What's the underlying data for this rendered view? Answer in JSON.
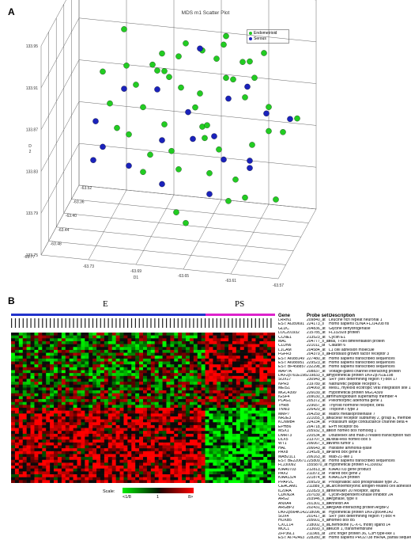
{
  "panel_a": {
    "label": "A",
    "title": "MDS m1 Scatter Plot",
    "legend": [
      {
        "name": "Endometrioid",
        "color": "#22cc22"
      },
      {
        "name": "Serous",
        "color": "#1a22bb"
      }
    ],
    "z_ticks": [
      "133.95",
      "133.91",
      "133.87",
      "133.83",
      "133.79",
      "133.75"
    ],
    "z_label": "D 2",
    "depth_ticks": [
      "-63.52",
      "-63.36",
      "-63.40",
      "-63.44",
      "-63.48"
    ],
    "bottom_left_tick": "-63.77",
    "x_ticks": [
      "-63.73",
      "-63.69",
      "-63.65",
      "-63.61",
      "-63.57"
    ],
    "x_label": "D1"
  },
  "panel_b": {
    "label": "B",
    "group_e": "E",
    "group_ps": "PS",
    "group_e_color": "#2233cc",
    "group_ps_color": "#dd22cc",
    "table_headers": {
      "gene": "Gene",
      "probe": "Probe set",
      "desc": "Description"
    },
    "genes": [
      {
        "gene": "LRRN1",
        "probe": "209840_at",
        "desc": "Leucine rich repeat neuronal 1"
      },
      {
        "gene": "EST: AI289691",
        "probe": "224173_s",
        "desc": "Homo sapiens cDNA FLJ14208 fis"
      },
      {
        "gene": "GLDC",
        "probe": "204836_at",
        "desc": "Glycine dehydrogenase"
      },
      {
        "gene": "LOC201932",
        "probe": "215785_at",
        "desc": "FLJ32928 protein"
      },
      {
        "gene": "CCNE1",
        "probe": "213523_at",
        "desc": "Cyclin E1"
      },
      {
        "gene": "MAL",
        "probe": "204777_s_at",
        "desc": "Mal, T-cell differentiation protein"
      },
      {
        "gene": "CLDN6",
        "probe": "221011_at",
        "desc": "Claudin 6"
      },
      {
        "gene": "L1CAM",
        "probe": "204584_at",
        "desc": "L1 cell adhesion molecule"
      },
      {
        "gene": "FGFR3",
        "probe": "204379_s_at",
        "desc": "Fibroblast growth factor receptor 3"
      },
      {
        "gene": "EST: AI088149",
        "probe": "227480_at",
        "desc": "Homo sapiens transcribed sequences"
      },
      {
        "gene": "EST: AI088951",
        "probe": "229523_at",
        "desc": "Homo sapiens transcribed sequences"
      },
      {
        "gene": "EST: BF458857",
        "probe": "232298_at",
        "desc": "Homo sapiens transcribed sequences"
      },
      {
        "gene": "MAP7A",
        "probe": "208837_at",
        "desc": "Voltage-gated channel interacting protein"
      },
      {
        "gene": "DKFZp761E198",
        "probe": "219833_s_at",
        "desc": "Hypothetical protein DKFZp761E198"
      },
      {
        "gene": "SOX17",
        "probe": "230943_at",
        "desc": "SRY (sex determining region Y)-box 17"
      },
      {
        "gene": "NPR3",
        "probe": "219789_at",
        "desc": "Natriuretic peptide receptor C"
      },
      {
        "gene": "MEIS1",
        "probe": "204069_at",
        "desc": "Meis1, myeloid ecotropic viral integration site 1"
      },
      {
        "gene": "MGC4399",
        "probe": "226039_at",
        "desc": "Hypothetical protein MGC4399"
      },
      {
        "gene": "IGSF4",
        "probe": "209030_s_at",
        "desc": "Immunoglobulin superfamily member 4"
      },
      {
        "gene": "PLAG1",
        "probe": "205372_at",
        "desc": "Pleiomorphic adenoma gene 1"
      },
      {
        "gene": "THRB",
        "probe": "229657_at",
        "desc": "Thyroid hormone receptor, beta"
      },
      {
        "gene": "TNNI3",
        "probe": "226420_at",
        "desc": "Troponin I type 3"
      },
      {
        "gene": "MMP7",
        "probe": "204259_at",
        "desc": "Matrix metalloproteinase 7"
      },
      {
        "gene": "NR2E3",
        "probe": "221055_s_at",
        "desc": "Nuclear receptor subfamily 2, group E, member 3"
      },
      {
        "gene": "KCNMB4",
        "probe": "224234_at",
        "desc": "Potassium large conductance channel beta 4"
      },
      {
        "gene": "EPHB6",
        "probe": "204718_at",
        "desc": "EPH receptor B6"
      },
      {
        "gene": "MSX1",
        "probe": "205932_s_at",
        "desc": "Msh homeo box homolog 1"
      },
      {
        "gene": "DMRT3",
        "probe": "220534_at",
        "desc": "Doublesex and mab-3 related transcription factor 3"
      },
      {
        "gene": "DLX5",
        "probe": "213707_s_at",
        "desc": "Distal-less homeo box 5"
      },
      {
        "gene": "WT1",
        "probe": "206067_s_at",
        "desc": "Wilms tumor 1"
      },
      {
        "gene": "HAL",
        "probe": "206643_at",
        "desc": "Histidine ammonia-lyase"
      },
      {
        "gene": "PAX8",
        "probe": "214528_s_at",
        "desc": "Paired box gene 8"
      },
      {
        "gene": "MAB21L1",
        "probe": "206163_at",
        "desc": "Mab-21-like 1"
      },
      {
        "gene": "EST: BE220671",
        "probe": "225809_at",
        "desc": "Homo sapiens transcribed sequences"
      },
      {
        "gene": "FLJ30092",
        "probe": "1555870_at",
        "desc": "Hypothetical protein FLJ30092"
      },
      {
        "gene": "KIAA0703",
        "probe": "212813_at",
        "desc": "KIAA0703 gene product"
      },
      {
        "gene": "PAX2",
        "probe": "211873_at",
        "desc": "Paired box gene 2"
      },
      {
        "gene": "KIAA1324",
        "probe": "221874_at",
        "desc": "KIAA1324 protein"
      },
      {
        "gene": "PPAP2C",
        "probe": "209529_at",
        "desc": "Phosphatidic acid phosphatase type 2C"
      },
      {
        "gene": "CEACAM1",
        "probe": "211889_x_at",
        "desc": "Carcinoembryonic antigen-related cell adhesion molecule 1"
      },
      {
        "gene": "IL20RA",
        "probe": "222829_s_at",
        "desc": "Interleukin 20 receptor, alpha"
      },
      {
        "gene": "CDKN2A",
        "probe": "207039_at",
        "desc": "Cyclin-dependent kinase inhibitor 2A"
      },
      {
        "gene": "ARG2",
        "probe": "203946_s_at",
        "desc": "Arginase, type II"
      },
      {
        "gene": "ANXA4",
        "probe": "201301_s_at",
        "desc": "Annexin A4"
      },
      {
        "gene": "ARGBP2",
        "probe": "202431_s_at",
        "desc": "Arg/Abl-interacting protein ArgBP2"
      },
      {
        "gene": "DKFZp564K142",
        "probe": "218096_at",
        "desc": "Hypothetical protein DKFZp564K142"
      },
      {
        "gene": "SOX4",
        "probe": "201417_at",
        "desc": "SRY (sex determining region Y)-box 4"
      },
      {
        "gene": "HOXB5",
        "probe": "205601_s_at",
        "desc": "Homeo box B5"
      },
      {
        "gene": "CXCL14",
        "probe": "218002_s_at",
        "desc": "Chemokine (C-X-C motif) ligand 14"
      },
      {
        "gene": "MUC1",
        "probe": "213693_s_at",
        "desc": "Mucin 1, transmembrane"
      },
      {
        "gene": "ZFP36L1",
        "probe": "211965_at",
        "desc": "Zinc finger protein 36, C3H type-like 1"
      },
      {
        "gene": "EST: AI742463",
        "probe": "228280_at",
        "desc": "Homo sapiens PRO2738 mRNA, partial sequence"
      }
    ],
    "scale": {
      "label": "Scale:",
      "low": "<1/8",
      "mid": "1",
      "high": "8>"
    }
  },
  "scatter_points": {
    "endometrioid": [
      [
        -63.7,
        -63.47,
        133.935
      ],
      [
        -63.66,
        -63.45,
        133.94
      ],
      [
        -63.63,
        -63.44,
        133.937
      ],
      [
        -63.68,
        -63.42,
        133.928
      ],
      [
        -63.61,
        -63.43,
        133.932
      ],
      [
        -63.65,
        -63.4,
        133.926
      ],
      [
        -63.72,
        -63.38,
        133.93
      ],
      [
        -63.6,
        -63.39,
        133.925
      ],
      [
        -63.67,
        -63.37,
        133.918
      ],
      [
        -63.64,
        -63.36,
        133.916
      ],
      [
        -63.69,
        -63.41,
        133.912
      ],
      [
        -63.62,
        -63.42,
        133.91
      ],
      [
        -63.66,
        -63.44,
        133.906
      ],
      [
        -63.7,
        -63.43,
        133.9
      ],
      [
        -63.63,
        -63.4,
        133.902
      ],
      [
        -63.61,
        -63.38,
        133.896
      ],
      [
        -63.68,
        -63.39,
        133.893
      ],
      [
        -63.65,
        -63.41,
        133.889
      ],
      [
        -63.72,
        -63.44,
        133.884
      ],
      [
        -63.59,
        -63.42,
        133.887
      ],
      [
        -63.67,
        -63.46,
        133.878
      ],
      [
        -63.64,
        -63.45,
        133.875
      ],
      [
        -63.62,
        -63.37,
        133.872
      ],
      [
        -63.7,
        -63.4,
        133.866
      ],
      [
        -63.66,
        -63.38,
        133.862
      ],
      [
        -63.6,
        -63.44,
        133.858
      ],
      [
        -63.68,
        -63.47,
        133.852
      ],
      [
        -63.63,
        -63.43,
        133.846
      ],
      [
        -63.71,
        -63.41,
        133.843
      ],
      [
        -63.65,
        -63.39,
        133.838
      ],
      [
        -63.61,
        -63.46,
        133.832
      ],
      [
        -63.69,
        -63.45,
        133.826
      ],
      [
        -63.64,
        -63.42,
        133.818
      ],
      [
        -63.67,
        -63.4,
        133.81
      ],
      [
        -63.62,
        -63.44,
        133.802
      ],
      [
        -63.66,
        -63.46,
        133.795
      ],
      [
        -63.58,
        -63.41,
        133.86
      ],
      [
        -63.73,
        -63.42,
        133.905
      ],
      [
        -63.6,
        -63.47,
        133.82
      ],
      [
        -63.63,
        -63.48,
        133.89
      ],
      [
        -63.69,
        -63.36,
        133.885
      ],
      [
        -63.64,
        -63.35,
        133.92
      ],
      [
        -63.58,
        -63.44,
        133.808
      ],
      [
        -63.65,
        -63.47,
        133.79
      ],
      [
        -63.71,
        -63.46,
        133.87
      ],
      [
        -63.62,
        -63.35,
        133.898
      ],
      [
        -63.67,
        -63.43,
        133.84
      ],
      [
        -63.6,
        -63.37,
        133.842
      ],
      [
        -63.68,
        -63.44,
        133.92
      ],
      [
        -63.57,
        -63.4,
        133.87
      ]
    ],
    "serous": [
      [
        -63.71,
        -63.43,
        133.895
      ],
      [
        -63.69,
        -63.39,
        133.88
      ],
      [
        -63.73,
        -63.45,
        133.87
      ],
      [
        -63.66,
        -63.41,
        133.87
      ],
      [
        -63.63,
        -63.39,
        133.878
      ],
      [
        -63.61,
        -63.41,
        133.9
      ],
      [
        -63.72,
        -63.47,
        133.855
      ],
      [
        -63.65,
        -63.44,
        133.858
      ],
      [
        -63.62,
        -63.46,
        133.85
      ],
      [
        -63.68,
        -63.42,
        133.845
      ],
      [
        -63.59,
        -63.43,
        133.885
      ],
      [
        -63.7,
        -63.46,
        133.835
      ],
      [
        -63.64,
        -63.4,
        133.845
      ],
      [
        -63.6,
        -63.45,
        133.84
      ],
      [
        -63.67,
        -63.47,
        133.825
      ],
      [
        -63.74,
        -63.41,
        133.815
      ],
      [
        -63.63,
        -63.47,
        133.82
      ],
      [
        -63.58,
        -63.38,
        133.86
      ],
      [
        -63.66,
        -63.36,
        133.91
      ],
      [
        -63.61,
        -63.4,
        133.825
      ]
    ]
  }
}
